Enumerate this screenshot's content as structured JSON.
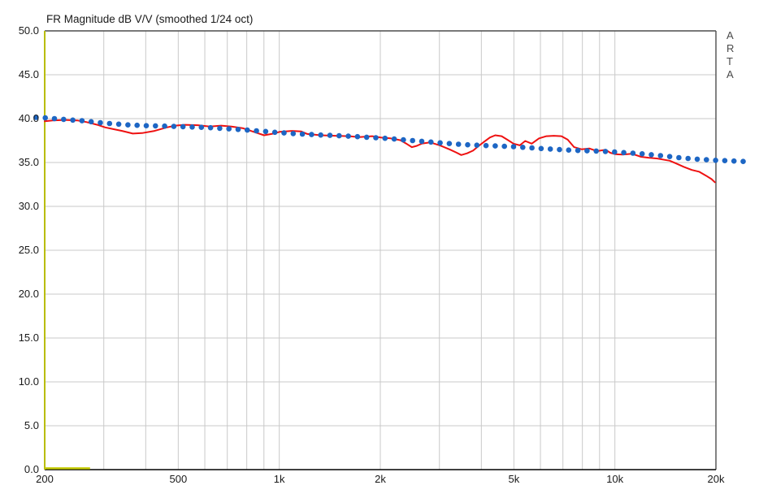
{
  "window": {
    "branding": "A\nR\nT\nA"
  },
  "chart_data": {
    "type": "line",
    "title": "FR Magnitude dB V/V (smoothed 1/24 oct)",
    "x_axis": {
      "scale": "log",
      "unit": "Hz",
      "min": 200,
      "max": 20000,
      "ticks": [
        {
          "value": 200,
          "label": "200"
        },
        {
          "value": 500,
          "label": "500"
        },
        {
          "value": 1000,
          "label": "1k"
        },
        {
          "value": 2000,
          "label": "2k"
        },
        {
          "value": 5000,
          "label": "5k"
        },
        {
          "value": 10000,
          "label": "10k"
        },
        {
          "value": 20000,
          "label": "20k"
        }
      ],
      "gridlines": [
        300,
        400,
        500,
        600,
        700,
        800,
        900,
        1000,
        2000,
        3000,
        4000,
        5000,
        6000,
        7000,
        8000,
        9000,
        10000
      ]
    },
    "y_axis": {
      "unit": "dB",
      "min": 0,
      "max": 50,
      "step": 5,
      "labels": [
        "50.0",
        "45.0",
        "40.0",
        "35.0",
        "30.0",
        "25.0",
        "20.0",
        "15.0",
        "10.0",
        "5.0",
        "0.0"
      ]
    },
    "grid": true,
    "legend": "none",
    "series": [
      {
        "name": "red_solid_trace",
        "style": "solid",
        "color": "#ee1111",
        "points": [
          [
            200,
            39.7
          ],
          [
            211,
            39.8
          ],
          [
            230,
            39.85
          ],
          [
            250,
            39.8
          ],
          [
            267,
            39.6
          ],
          [
            287,
            39.3
          ],
          [
            303,
            39.0
          ],
          [
            321,
            38.8
          ],
          [
            340,
            38.6
          ],
          [
            366,
            38.3
          ],
          [
            390,
            38.35
          ],
          [
            425,
            38.6
          ],
          [
            462,
            39.0
          ],
          [
            490,
            39.2
          ],
          [
            524,
            39.3
          ],
          [
            572,
            39.25
          ],
          [
            621,
            39.1
          ],
          [
            671,
            39.2
          ],
          [
            720,
            39.1
          ],
          [
            781,
            38.9
          ],
          [
            838,
            38.5
          ],
          [
            901,
            38.1
          ],
          [
            962,
            38.3
          ],
          [
            1004,
            38.5
          ],
          [
            1091,
            38.6
          ],
          [
            1161,
            38.55
          ],
          [
            1212,
            38.25
          ],
          [
            1330,
            38.1
          ],
          [
            1469,
            38.05
          ],
          [
            1614,
            38.0
          ],
          [
            1730,
            37.9
          ],
          [
            1890,
            38.0
          ],
          [
            2007,
            37.85
          ],
          [
            2145,
            37.75
          ],
          [
            2293,
            37.55
          ],
          [
            2401,
            37.1
          ],
          [
            2483,
            36.75
          ],
          [
            2569,
            36.9
          ],
          [
            2657,
            37.15
          ],
          [
            2814,
            37.3
          ],
          [
            3010,
            36.95
          ],
          [
            3215,
            36.5
          ],
          [
            3365,
            36.15
          ],
          [
            3484,
            35.85
          ],
          [
            3628,
            36.05
          ],
          [
            3778,
            36.35
          ],
          [
            3931,
            36.9
          ],
          [
            4090,
            37.4
          ],
          [
            4243,
            37.85
          ],
          [
            4400,
            38.1
          ],
          [
            4597,
            38.0
          ],
          [
            4805,
            37.55
          ],
          [
            4987,
            37.15
          ],
          [
            5206,
            36.95
          ],
          [
            5404,
            37.45
          ],
          [
            5650,
            37.15
          ],
          [
            5943,
            37.75
          ],
          [
            6252,
            38.0
          ],
          [
            6578,
            38.05
          ],
          [
            6930,
            38.0
          ],
          [
            7234,
            37.6
          ],
          [
            7561,
            36.75
          ],
          [
            7970,
            36.5
          ],
          [
            8387,
            36.6
          ],
          [
            8848,
            36.3
          ],
          [
            9381,
            36.45
          ],
          [
            9700,
            36.1
          ],
          [
            10020,
            35.95
          ],
          [
            10530,
            35.9
          ],
          [
            11230,
            36.0
          ],
          [
            11970,
            35.65
          ],
          [
            12600,
            35.55
          ],
          [
            13390,
            35.45
          ],
          [
            14100,
            35.3
          ],
          [
            14560,
            35.2
          ],
          [
            15200,
            34.9
          ],
          [
            16060,
            34.5
          ],
          [
            16960,
            34.15
          ],
          [
            17810,
            33.95
          ],
          [
            18690,
            33.5
          ],
          [
            19420,
            33.1
          ],
          [
            19860,
            32.75
          ]
        ]
      },
      {
        "name": "blue_dotted_overlay",
        "style": "dotted",
        "color": "#1d66c4",
        "points": [
          [
            187,
            40.15
          ],
          [
            200,
            40.1
          ],
          [
            230,
            39.9
          ],
          [
            260,
            39.75
          ],
          [
            300,
            39.5
          ],
          [
            350,
            39.3
          ],
          [
            400,
            39.2
          ],
          [
            450,
            39.15
          ],
          [
            500,
            39.1
          ],
          [
            600,
            39.0
          ],
          [
            700,
            38.85
          ],
          [
            800,
            38.7
          ],
          [
            900,
            38.55
          ],
          [
            1000,
            38.4
          ],
          [
            1100,
            38.3
          ],
          [
            1300,
            38.15
          ],
          [
            1600,
            38.0
          ],
          [
            2000,
            37.8
          ],
          [
            2500,
            37.5
          ],
          [
            3000,
            37.25
          ],
          [
            3500,
            37.05
          ],
          [
            4000,
            36.95
          ],
          [
            5000,
            36.8
          ],
          [
            6000,
            36.6
          ],
          [
            7000,
            36.45
          ],
          [
            8000,
            36.35
          ],
          [
            9000,
            36.3
          ],
          [
            10000,
            36.2
          ],
          [
            12000,
            36.0
          ],
          [
            14000,
            35.75
          ],
          [
            16000,
            35.5
          ],
          [
            18000,
            35.35
          ],
          [
            20000,
            35.25
          ],
          [
            24900,
            35.1
          ]
        ]
      }
    ],
    "cursor_marker": {
      "from_hz": 200,
      "to_hz": 273,
      "db": 0.15,
      "color": "#c6cc00"
    },
    "colors": {
      "background": "#ffffff",
      "grid": "#c9c9c9",
      "frame": "#4d4d4d",
      "bottom_axis": "#000000",
      "left_axis": "#b9bd00",
      "text": "#1a1a1a"
    }
  }
}
